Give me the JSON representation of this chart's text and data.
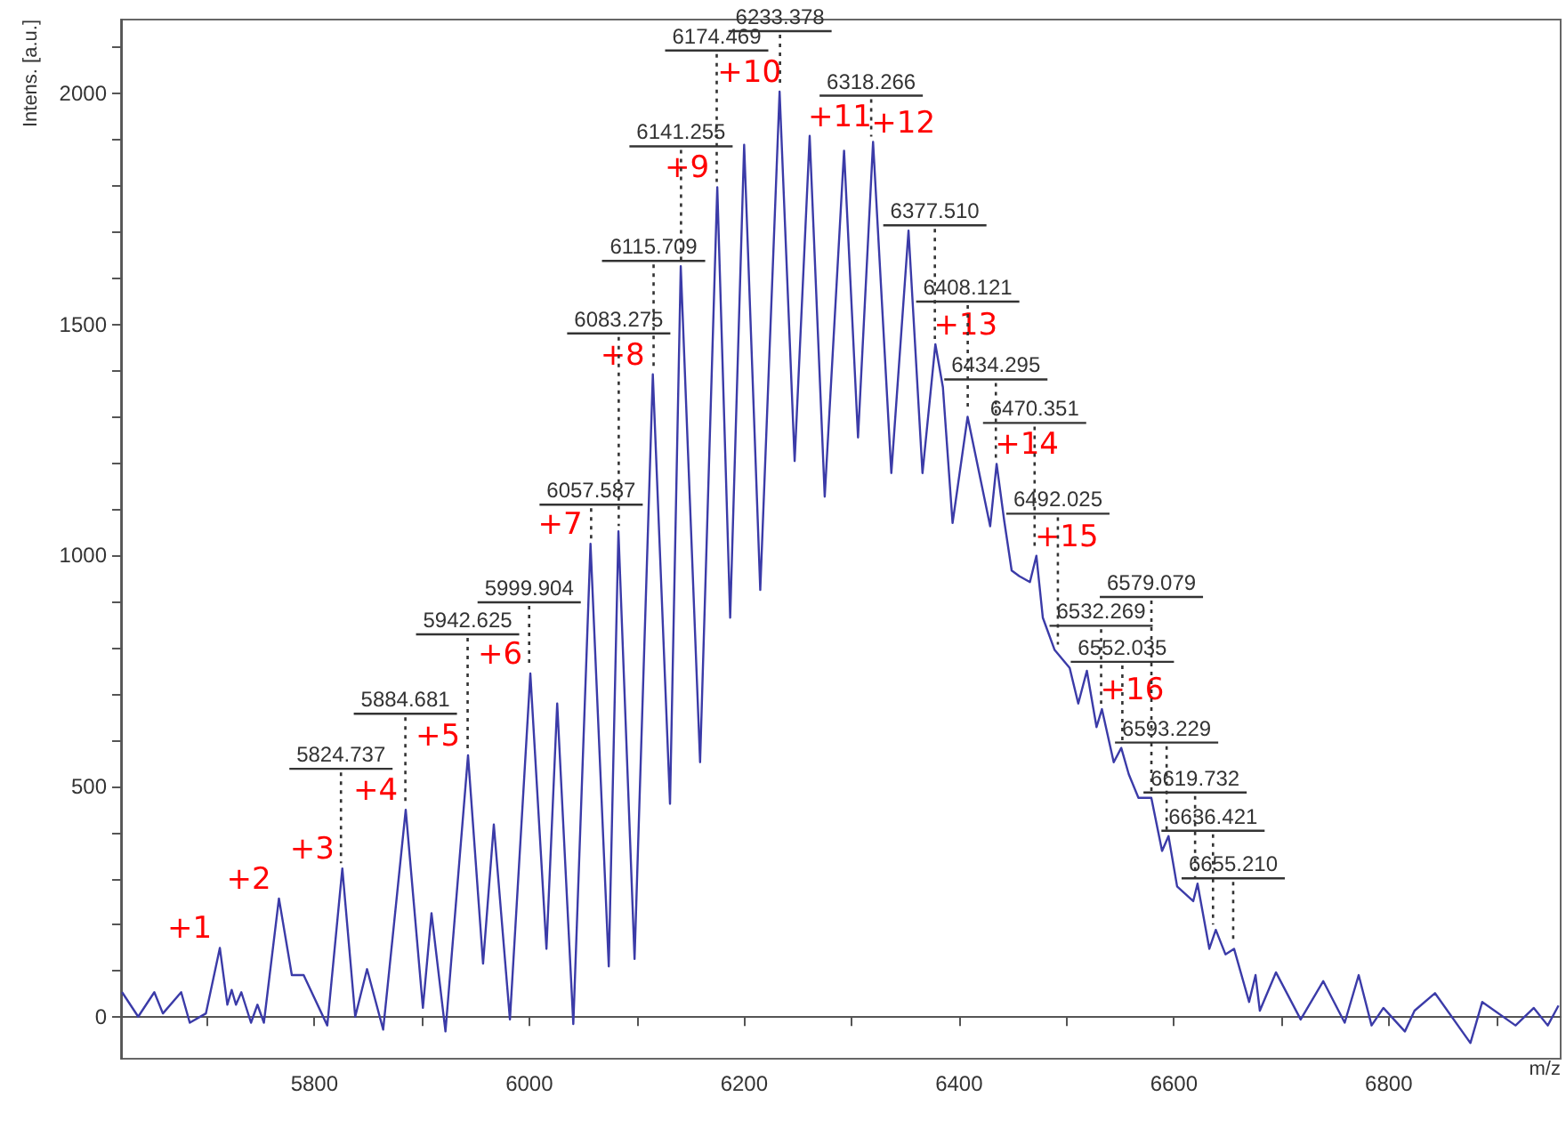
{
  "chart_data": {
    "type": "line",
    "xlabel": "m/z",
    "ylabel": "Intens. [a.u.]",
    "xlim": [
      5620,
      6960
    ],
    "ylim": [
      -90,
      2160
    ],
    "xticks": [
      {
        "value": 5700,
        "label": null
      },
      5800,
      {
        "value": 5900,
        "label": null
      },
      6000,
      {
        "value": 6100,
        "label": null
      },
      6200,
      {
        "value": 6300,
        "label": null
      },
      6400,
      {
        "value": 6500,
        "label": null
      },
      6600,
      {
        "value": 6700,
        "label": null
      },
      6800,
      {
        "value": 6900,
        "label": null
      }
    ],
    "yticks": [
      0,
      {
        "value": 100,
        "label": null
      },
      {
        "value": 200,
        "label": null
      },
      {
        "value": 300,
        "label": null
      },
      {
        "value": 400,
        "label": null
      },
      500,
      {
        "value": 600,
        "label": null
      },
      {
        "value": 700,
        "label": null
      },
      {
        "value": 800,
        "label": null
      },
      {
        "value": 900,
        "label": null
      },
      1000,
      {
        "value": 1100,
        "label": null
      },
      {
        "value": 1200,
        "label": null
      },
      {
        "value": 1300,
        "label": null
      },
      {
        "value": 1400,
        "label": null
      },
      1500,
      {
        "value": 1600,
        "label": null
      },
      {
        "value": 1700,
        "label": null
      },
      {
        "value": 1800,
        "label": null
      },
      {
        "value": 1900,
        "label": null
      },
      2000,
      {
        "value": 2100,
        "label": null
      }
    ],
    "marker": "none",
    "series": [
      {
        "color": "#3b3ba8",
        "x": [
          5621,
          5636,
          5651,
          5659,
          5676,
          5684,
          5699,
          5712,
          5719,
          5723,
          5727,
          5732,
          5741,
          5747,
          5753,
          5767,
          5779,
          5790,
          5812,
          5826,
          5838,
          5849,
          5864,
          5885,
          5901,
          5909,
          5922,
          5943,
          5957,
          5967,
          5982,
          6001,
          6016,
          6026,
          6041,
          6057,
          6074,
          6083,
          6098,
          6115,
          6131,
          6141,
          6159,
          6175,
          6187,
          6200,
          6215,
          6233,
          6247,
          6261,
          6275,
          6293,
          6306,
          6320,
          6337,
          6353,
          6366,
          6378,
          6385,
          6394,
          6408,
          6429,
          6435,
          6442,
          6449,
          6456,
          6466,
          6472,
          6478,
          6489,
          6503,
          6511,
          6519,
          6528,
          6533,
          6544,
          6551,
          6558,
          6567,
          6579,
          6589,
          6595,
          6603,
          6618,
          6622,
          6633,
          6639,
          6648,
          6656,
          6670,
          6676,
          6680,
          6695,
          6718,
          6739,
          6759,
          6772,
          6784,
          6795,
          6815,
          6824,
          6843,
          6876,
          6887,
          6918,
          6935,
          6948,
          6958
        ],
        "values": [
          54,
          1,
          54,
          8,
          54,
          -12,
          8,
          150,
          27,
          59,
          27,
          54,
          -12,
          27,
          -12,
          257,
          91,
          91,
          -18,
          322,
          1,
          104,
          -27,
          449,
          20,
          225,
          -31,
          567,
          116,
          417,
          -5,
          744,
          148,
          679,
          -15,
          1025,
          110,
          1052,
          126,
          1392,
          462,
          1626,
          552,
          1797,
          865,
          1889,
          925,
          2004,
          1204,
          1908,
          1127,
          1876,
          1255,
          1895,
          1178,
          1703,
          1178,
          1457,
          1364,
          1070,
          1300,
          1063,
          1198,
          1076,
          967,
          955,
          942,
          999,
          865,
          795,
          756,
          679,
          750,
          628,
          667,
          552,
          583,
          526,
          475,
          475,
          360,
          392,
          283,
          251,
          289,
          148,
          189,
          136,
          148,
          33,
          91,
          14,
          97,
          -5,
          78,
          -12,
          91,
          -18,
          20,
          -31,
          14,
          52,
          -56,
          33,
          -18,
          20,
          -18,
          25
        ]
      }
    ],
    "annotations": [
      {
        "text": "5824.737",
        "x": 5824.737,
        "y": 322
      },
      {
        "text": "5884.681",
        "x": 5884.681,
        "y": 449
      },
      {
        "text": "5942.625",
        "x": 5942.625,
        "y": 567
      },
      {
        "text": "5999.904",
        "x": 5999.904,
        "y": 744
      },
      {
        "text": "6057.587",
        "x": 6057.587,
        "y": 1025
      },
      {
        "text": "6083.275",
        "x": 6083.275,
        "y": 1052
      },
      {
        "text": "6115.709",
        "x": 6115.709,
        "y": 1392
      },
      {
        "text": "6141.255",
        "x": 6141.255,
        "y": 1626
      },
      {
        "text": "6174.469",
        "x": 6174.469,
        "y": 1797
      },
      {
        "text": "6233.378",
        "x": 6233.378,
        "y": 2004
      },
      {
        "text": "6318.266",
        "x": 6318.266,
        "y": 1895
      },
      {
        "text": "6377.510",
        "x": 6377.51,
        "y": 1457
      },
      {
        "text": "6408.121",
        "x": 6408.121,
        "y": 1300
      },
      {
        "text": "6434.295",
        "x": 6434.295,
        "y": 1198
      },
      {
        "text": "6470.351",
        "x": 6470.351,
        "y": 999
      },
      {
        "text": "6492.025",
        "x": 6492.025,
        "y": 795
      },
      {
        "text": "6532.269",
        "x": 6532.269,
        "y": 667
      },
      {
        "text": "6552.035",
        "x": 6552.035,
        "y": 583
      },
      {
        "text": "6579.079",
        "x": 6579.079,
        "y": 475
      },
      {
        "text": "6593.229",
        "x": 6593.229,
        "y": 392
      },
      {
        "text": "6619.732",
        "x": 6619.732,
        "y": 289
      },
      {
        "text": "6636.421",
        "x": 6636.421,
        "y": 189
      },
      {
        "text": "6655.210",
        "x": 6655.21,
        "y": 148
      },
      {
        "text": "+1",
        "x": 5712,
        "y": 150
      },
      {
        "text": "+2",
        "x": 5767,
        "y": 257
      },
      {
        "text": "+3",
        "x": 5826,
        "y": 322
      },
      {
        "text": "+4",
        "x": 5885,
        "y": 449
      },
      {
        "text": "+5",
        "x": 5943,
        "y": 567
      },
      {
        "text": "+6",
        "x": 6001,
        "y": 744
      },
      {
        "text": "+7",
        "x": 6057,
        "y": 1025
      },
      {
        "text": "+8",
        "x": 6115,
        "y": 1392
      },
      {
        "text": "+9",
        "x": 6175,
        "y": 1797
      },
      {
        "text": "+10",
        "x": 6233,
        "y": 2004
      },
      {
        "text": "+11",
        "x": 6261,
        "y": 1908
      },
      {
        "text": "+12",
        "x": 6320,
        "y": 1895
      },
      {
        "text": "+13",
        "x": 6378,
        "y": 1457
      },
      {
        "text": "+14",
        "x": 6435,
        "y": 1198
      },
      {
        "text": "+15",
        "x": 6472,
        "y": 999
      },
      {
        "text": "+16",
        "x": 6533,
        "y": 667
      }
    ]
  }
}
